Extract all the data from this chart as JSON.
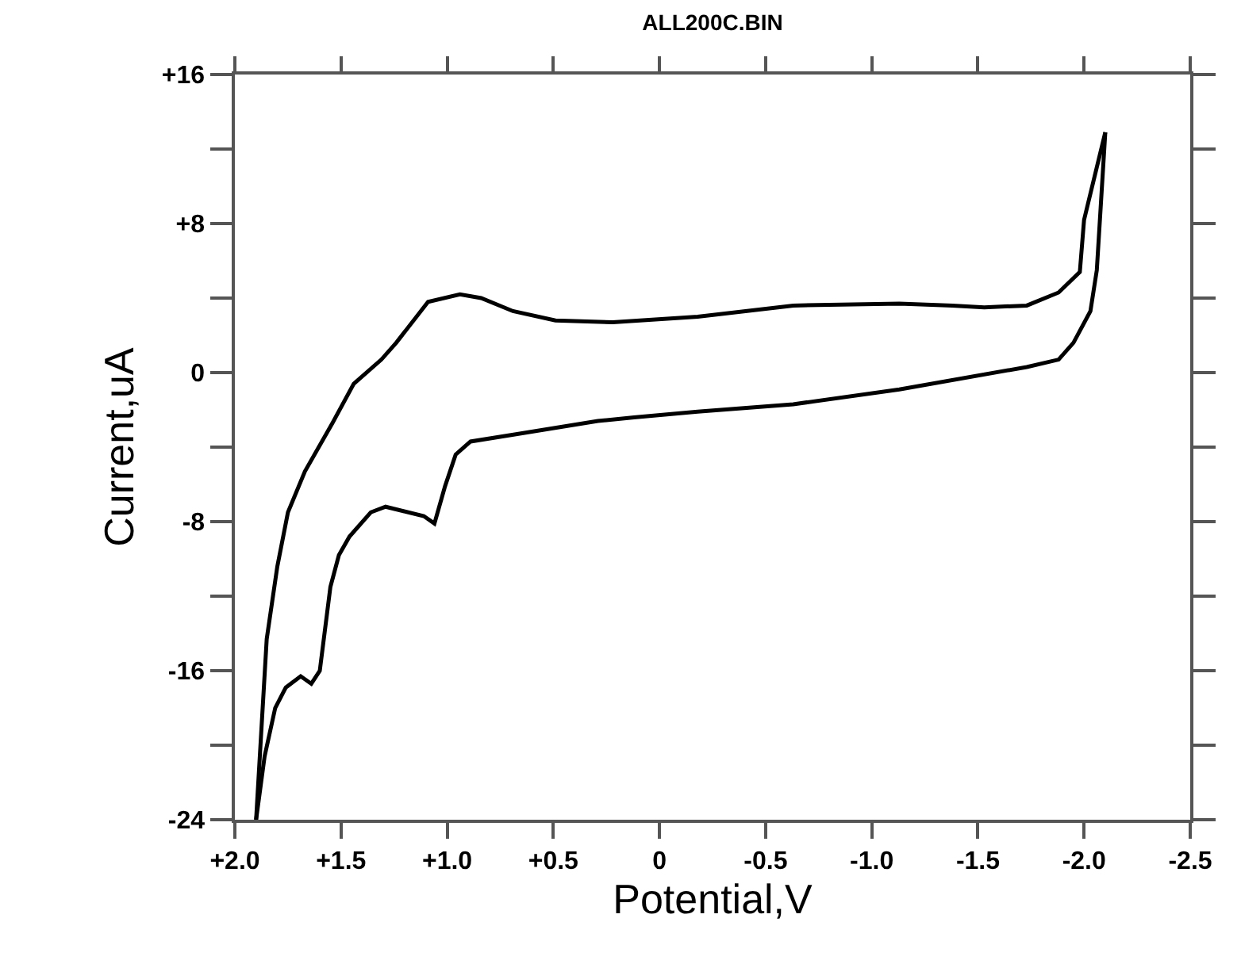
{
  "chart_data": {
    "type": "line",
    "title": "ALL200C.BIN",
    "xlabel": "Potential,V",
    "ylabel": "Current,uA",
    "series": [
      {
        "color": "#000000",
        "x": [
          1.9,
          1.85,
          1.8,
          1.75,
          1.67,
          1.54,
          1.44,
          1.31,
          1.24,
          1.09,
          0.94,
          0.84,
          0.69,
          0.49,
          0.22,
          -0.18,
          -0.63,
          -1.13,
          -1.38,
          -1.53,
          -1.73,
          -1.88,
          -1.98,
          -2.0,
          -2.1
        ],
        "values": [
          -24,
          -14.3,
          -10.4,
          -7.5,
          -5.3,
          -2.7,
          -0.6,
          0.7,
          1.6,
          3.8,
          4.2,
          4.0,
          3.3,
          2.8,
          2.7,
          3.0,
          3.6,
          3.7,
          3.6,
          3.5,
          3.6,
          4.3,
          5.4,
          8.2,
          12.9
        ]
      },
      {
        "color": "#000000",
        "x": [
          -2.1,
          -2.06,
          -2.03,
          -1.95,
          -1.88,
          -1.73,
          -1.13,
          -0.63,
          -0.18,
          0.12,
          0.29,
          0.67,
          0.89,
          0.96,
          1.01,
          1.06,
          1.11,
          1.29,
          1.36,
          1.46,
          1.51,
          1.55,
          1.6,
          1.64,
          1.69,
          1.76,
          1.81,
          1.86,
          1.9
        ],
        "values": [
          12.9,
          5.5,
          3.3,
          1.6,
          0.7,
          0.3,
          -0.9,
          -1.7,
          -2.1,
          -2.4,
          -2.6,
          -3.3,
          -3.7,
          -4.4,
          -6.1,
          -8.1,
          -7.7,
          -7.2,
          -7.5,
          -8.8,
          -9.8,
          -11.5,
          -16,
          -16.7,
          -16.3,
          -16.9,
          -18,
          -20.6,
          -24
        ]
      }
    ],
    "xlim": [
      2.0,
      -2.5
    ],
    "xticks": [
      {
        "value": 2.0,
        "label": "+2.0"
      },
      {
        "value": 1.5,
        "label": "+1.5"
      },
      {
        "value": 1.0,
        "label": "+1.0"
      },
      {
        "value": 0.5,
        "label": "+0.5"
      },
      0,
      -0.5,
      {
        "value": -1.0,
        "label": "-1.0"
      },
      -1.5,
      {
        "value": -2.0,
        "label": "-2.0"
      },
      -2.5
    ],
    "ylim": [
      -24,
      16
    ],
    "yticks": [
      {
        "value": -24,
        "label": "-24"
      },
      {
        "value": -20,
        "label": null
      },
      {
        "value": -16,
        "label": "-16"
      },
      {
        "value": -12,
        "label": null
      },
      {
        "value": -8,
        "label": "-8"
      },
      {
        "value": -4,
        "label": null
      },
      0,
      {
        "value": 4,
        "label": null
      },
      {
        "value": 8,
        "label": "+8"
      },
      {
        "value": 12,
        "label": null
      },
      {
        "value": 16,
        "label": "+16"
      }
    ],
    "grid": false,
    "marker": "none",
    "line_style": "solid"
  }
}
